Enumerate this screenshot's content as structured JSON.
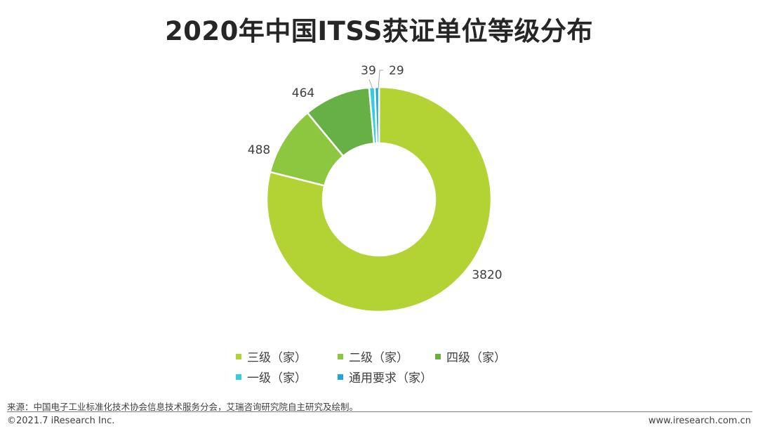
{
  "chart_data": {
    "type": "pie",
    "title": "2020年中国ITSS获证单位等级分布",
    "categories": [
      "三级（家）",
      "二级（家）",
      "四级（家）",
      "一级（家）",
      "通用要求（家）"
    ],
    "values": [
      3820,
      488,
      464,
      39,
      29
    ],
    "data_labels": [
      "3820",
      "488",
      "464",
      "39",
      "29"
    ],
    "colors": [
      "#b3d334",
      "#8dc63f",
      "#67b045",
      "#33cde2",
      "#1fa8d6"
    ],
    "donut": true,
    "legend_position": "bottom"
  },
  "footer": {
    "source": "来源：中国电子工业标准化技术协会信息技术服务分会，艾瑞咨询研究院自主研究及绘制。",
    "copyright": "©2021.7 iResearch Inc.",
    "website": "www.iresearch.com.cn"
  }
}
